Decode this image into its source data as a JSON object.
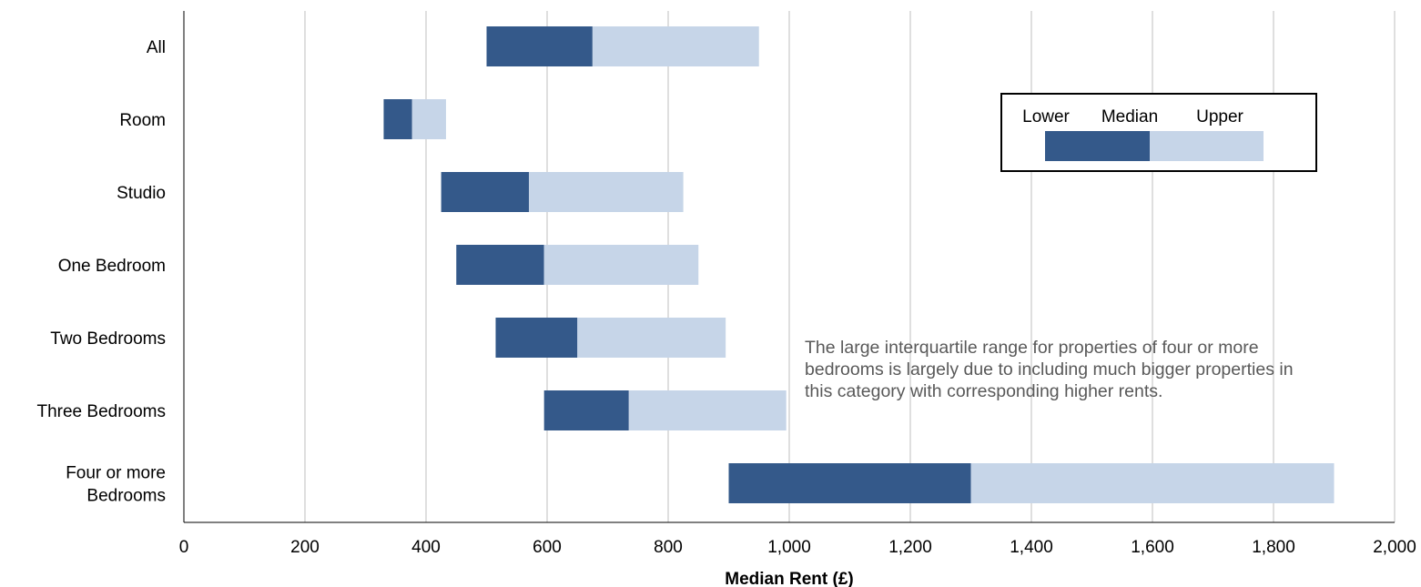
{
  "chart_data": {
    "type": "bar",
    "orientation": "horizontal",
    "stacked_range": true,
    "categories": [
      "All",
      "Room",
      "Studio",
      "One Bedroom",
      "Two Bedrooms",
      "Three Bedrooms",
      "Four or more Bedrooms"
    ],
    "category_lines": [
      [
        "All"
      ],
      [
        "Room"
      ],
      [
        "Studio"
      ],
      [
        "One Bedroom"
      ],
      [
        "Two Bedrooms"
      ],
      [
        "Three Bedrooms"
      ],
      [
        "Four or more",
        "Bedrooms"
      ]
    ],
    "lower": [
      500,
      330,
      425,
      450,
      515,
      595,
      900
    ],
    "median": [
      675,
      377,
      570,
      595,
      650,
      735,
      1300
    ],
    "upper": [
      950,
      433,
      825,
      850,
      895,
      995,
      1900
    ],
    "xlabel": "Median Rent (£)",
    "xlim": [
      0,
      2000
    ],
    "xticks": [
      0,
      200,
      400,
      600,
      800,
      1000,
      1200,
      1400,
      1600,
      1800,
      2000
    ],
    "xtick_labels": [
      "0",
      "200",
      "400",
      "600",
      "800",
      "1,000",
      "1,200",
      "1,400",
      "1,600",
      "1,800",
      "2,000"
    ],
    "grid": "vertical",
    "legend": {
      "placement": "top-right",
      "labels": [
        "Lower",
        "Median",
        "Upper"
      ]
    },
    "colors": {
      "lower_to_median": "#34598a",
      "median_to_upper": "#c6d5e8",
      "grid": "#bfbfbf",
      "axis": "#000000",
      "note": "#595959"
    },
    "annotation": [
      "The large interquartile range for properties of four or more",
      "bedrooms is largely due to including much bigger properties in",
      "this category with corresponding higher rents."
    ]
  }
}
